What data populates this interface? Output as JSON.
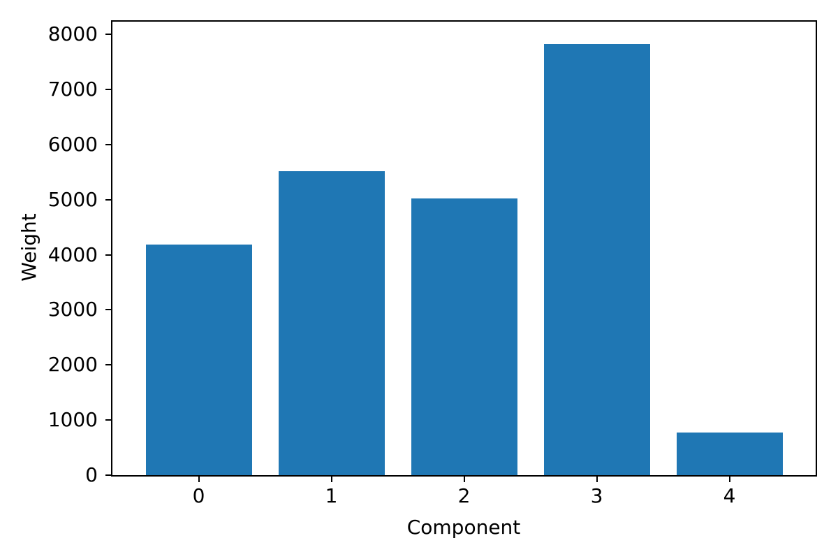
{
  "chart_data": {
    "type": "bar",
    "categories": [
      "0",
      "1",
      "2",
      "3",
      "4"
    ],
    "values": [
      4190,
      5520,
      5020,
      7830,
      780
    ],
    "title": "",
    "xlabel": "Component",
    "ylabel": "Weight",
    "ylim": [
      0,
      8230
    ],
    "xlim": [
      -0.65,
      4.65
    ],
    "yticks": [
      0,
      1000,
      2000,
      3000,
      4000,
      5000,
      6000,
      7000,
      8000
    ],
    "bar_width_data_units": 0.8,
    "bar_color": "#1f77b4",
    "axis_color": "#000000",
    "grid": false,
    "legend_position": "none"
  }
}
